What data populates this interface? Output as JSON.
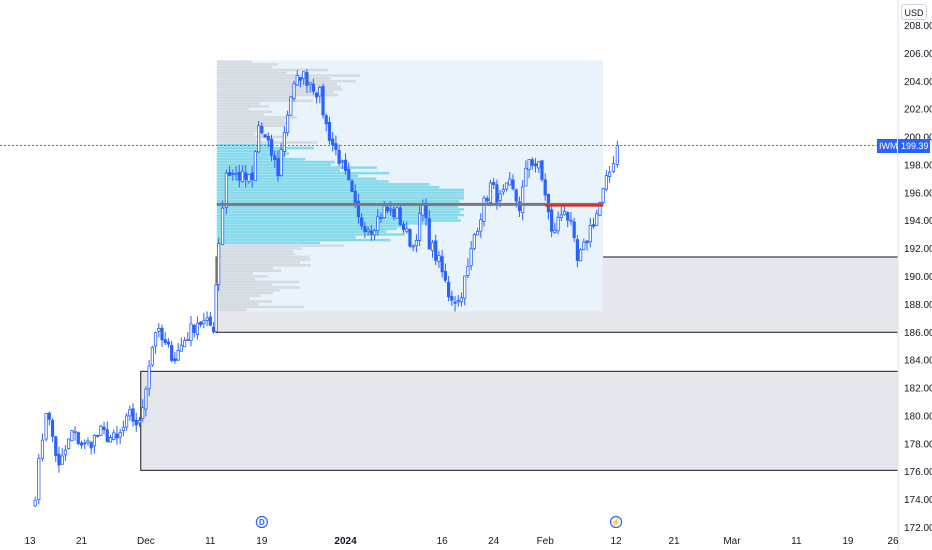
{
  "currency": "USD",
  "symbol": "IWM",
  "last_price": "199.39",
  "colors": {
    "up": "#2962ff",
    "down": "#2962ff",
    "price_line": "#2962ff",
    "zone_fill": "#e5e7ec",
    "zone_border": "#131722",
    "value_area": "#64d2e6",
    "profile_grey": "#c8cad0",
    "profile_bg": "#e8f3fb",
    "poc": "#d32f2f",
    "avg_line": "#7a7a7a"
  },
  "chart_data": {
    "type": "candlestick",
    "y_ticks": [
      "208.00",
      "206.00",
      "204.00",
      "202.00",
      "200.00",
      "198.00",
      "196.00",
      "194.00",
      "192.00",
      "190.00",
      "188.00",
      "186.00",
      "184.00",
      "182.00",
      "180.00",
      "178.00",
      "176.00",
      "174.00",
      "172.00"
    ],
    "x_ticks": [
      {
        "label": "13",
        "day": 0,
        "bold": false
      },
      {
        "label": "21",
        "day": 8,
        "bold": false
      },
      {
        "label": "Dec",
        "day": 18,
        "bold": false
      },
      {
        "label": "11",
        "day": 28,
        "bold": false
      },
      {
        "label": "19",
        "day": 36,
        "bold": false
      },
      {
        "label": "2024",
        "day": 49,
        "bold": true
      },
      {
        "label": "16",
        "day": 64,
        "bold": false
      },
      {
        "label": "24",
        "day": 72,
        "bold": false
      },
      {
        "label": "Feb",
        "day": 80,
        "bold": false
      },
      {
        "label": "12",
        "day": 91,
        "bold": false
      },
      {
        "label": "21",
        "day": 100,
        "bold": false
      },
      {
        "label": "Mar",
        "day": 109,
        "bold": false
      },
      {
        "label": "11",
        "day": 119,
        "bold": false
      },
      {
        "label": "19",
        "day": 127,
        "bold": false
      },
      {
        "label": "26",
        "day": 134,
        "bold": false
      }
    ],
    "y_range": [
      172,
      208
    ],
    "zones": [
      {
        "start_day": 17.2,
        "low": 176.1,
        "high": 183.2
      },
      {
        "start_day": 28.9,
        "low": 186.0,
        "high": 191.4
      }
    ],
    "profile": {
      "start_day": 29.0,
      "end_day": 89.0,
      "low": 187.5,
      "high": 205.5,
      "value_area_low": 192.2,
      "value_area_high": 199.4,
      "poc": 195.1
    },
    "events": [
      {
        "label": "D",
        "day": 36
      },
      {
        "label": "⚡",
        "day": 91
      }
    ],
    "anchors": [
      {
        "day": 0.8,
        "price": 174.5
      },
      {
        "day": 2.5,
        "price": 180.5
      },
      {
        "day": 3.5,
        "price": 178.5
      },
      {
        "day": 4.5,
        "price": 176.2
      },
      {
        "day": 6.5,
        "price": 178.8
      },
      {
        "day": 8.5,
        "price": 177.8
      },
      {
        "day": 11.0,
        "price": 178.8
      },
      {
        "day": 13.5,
        "price": 178.2
      },
      {
        "day": 15.5,
        "price": 180.0
      },
      {
        "day": 17.0,
        "price": 179.3
      },
      {
        "day": 18.5,
        "price": 183.8
      },
      {
        "day": 19.5,
        "price": 186.2
      },
      {
        "day": 21.0,
        "price": 185.0
      },
      {
        "day": 22.5,
        "price": 184.2
      },
      {
        "day": 24.0,
        "price": 185.5
      },
      {
        "day": 26.0,
        "price": 186.8
      },
      {
        "day": 28.5,
        "price": 186.4
      },
      {
        "day": 29.3,
        "price": 192.6
      },
      {
        "day": 30.5,
        "price": 197.5
      },
      {
        "day": 32.5,
        "price": 197.2
      },
      {
        "day": 34.5,
        "price": 196.8
      },
      {
        "day": 35.5,
        "price": 200.8
      },
      {
        "day": 37.5,
        "price": 198.8
      },
      {
        "day": 38.5,
        "price": 197.5
      },
      {
        "day": 39.5,
        "price": 200.5
      },
      {
        "day": 40.5,
        "price": 203.0
      },
      {
        "day": 42.0,
        "price": 204.5
      },
      {
        "day": 43.5,
        "price": 204.0
      },
      {
        "day": 45.0,
        "price": 203.0
      },
      {
        "day": 46.0,
        "price": 200.8
      },
      {
        "day": 47.0,
        "price": 199.5
      },
      {
        "day": 48.0,
        "price": 198.5
      },
      {
        "day": 49.5,
        "price": 196.5
      },
      {
        "day": 51.0,
        "price": 194.0
      },
      {
        "day": 53.0,
        "price": 193.5
      },
      {
        "day": 55.0,
        "price": 194.8
      },
      {
        "day": 57.0,
        "price": 194.5
      },
      {
        "day": 58.5,
        "price": 193.0
      },
      {
        "day": 59.5,
        "price": 192.2
      },
      {
        "day": 61.0,
        "price": 195.0
      },
      {
        "day": 62.0,
        "price": 192.5
      },
      {
        "day": 63.5,
        "price": 191.0
      },
      {
        "day": 65.0,
        "price": 188.8
      },
      {
        "day": 66.5,
        "price": 188.2
      },
      {
        "day": 68.0,
        "price": 190.5
      },
      {
        "day": 69.0,
        "price": 193.0
      },
      {
        "day": 70.0,
        "price": 194.5
      },
      {
        "day": 71.5,
        "price": 196.5
      },
      {
        "day": 73.0,
        "price": 195.5
      },
      {
        "day": 74.5,
        "price": 196.5
      },
      {
        "day": 76.0,
        "price": 195.0
      },
      {
        "day": 77.5,
        "price": 198.5
      },
      {
        "day": 79.0,
        "price": 197.8
      },
      {
        "day": 80.0,
        "price": 196.0
      },
      {
        "day": 81.0,
        "price": 193.0
      },
      {
        "day": 82.0,
        "price": 194.0
      },
      {
        "day": 83.0,
        "price": 195.0
      },
      {
        "day": 84.0,
        "price": 193.5
      },
      {
        "day": 85.0,
        "price": 191.0
      },
      {
        "day": 86.0,
        "price": 192.0
      },
      {
        "day": 87.0,
        "price": 193.5
      },
      {
        "day": 88.0,
        "price": 194.5
      },
      {
        "day": 89.0,
        "price": 196.0
      },
      {
        "day": 90.0,
        "price": 197.5
      },
      {
        "day": 91.2,
        "price": 199.4
      }
    ]
  }
}
